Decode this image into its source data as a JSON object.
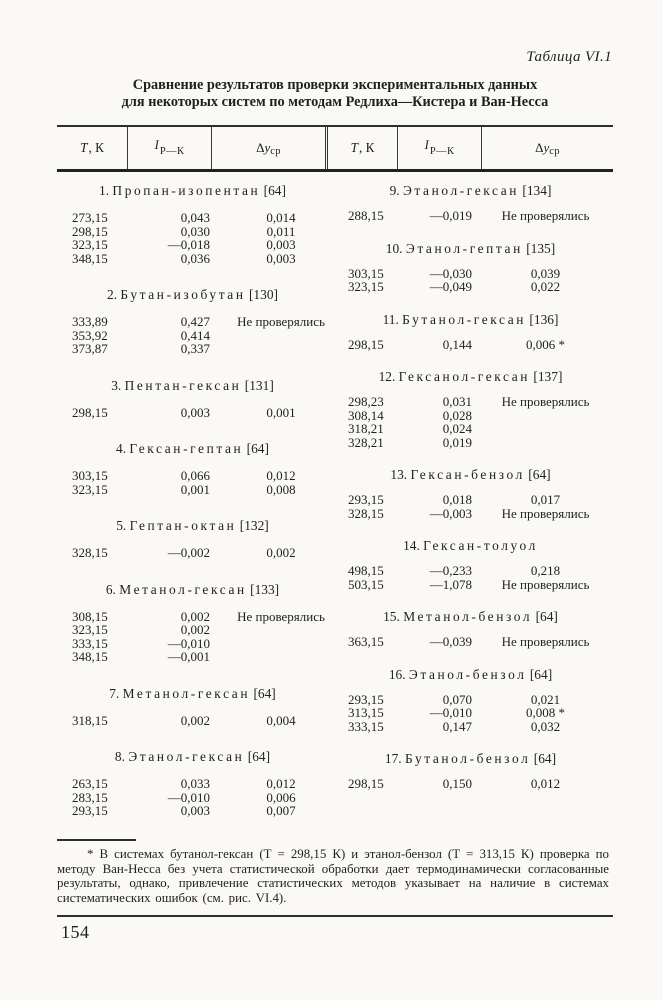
{
  "page": {
    "table_caption": "Таблица VI.1",
    "title_line1": "Сравнение результатов проверки экспериментальных данных",
    "title_line2": "для некоторых систем по методам Редлиха—Кистера и Ван-Несса",
    "footnote": "* В системах бутанол-гексан (Т = 298,15 К) и этанол-бензол (Т = 313,15 К) проверка по методу Ван-Несса без учета статистической обработки дает термодинамически согласованные результаты, однако, привлечение статистических методов указывает на наличие в системах систематических ошибок (см. рис. VI.4).",
    "page_number": "154"
  },
  "header": {
    "t_symbol": "Т",
    "t_unit": ", К",
    "i_symbol": "I",
    "i_sub": "Р—К",
    "dy_delta": "Δ",
    "dy_y": "y",
    "dy_sub": "ср"
  },
  "columns": {
    "left": [
      {
        "num": "1.",
        "name": "Пропан-изопентан",
        "ref": "[64]",
        "rows": [
          [
            "273,15",
            "0,043",
            "0,014"
          ],
          [
            "298,15",
            "0,030",
            "0,011"
          ],
          [
            "323,15",
            "—0,018",
            "0,003"
          ],
          [
            "348,15",
            "0,036",
            "0,003"
          ]
        ]
      },
      {
        "num": "2.",
        "name": "Бутан-изобутан",
        "ref": "[130]",
        "rows": [
          [
            "333,89",
            "0,427",
            "Не проверялись"
          ],
          [
            "353,92",
            "0,414",
            ""
          ],
          [
            "373,87",
            "0,337",
            ""
          ]
        ]
      },
      {
        "num": "3.",
        "name": "Пентан-гексан",
        "ref": "[131]",
        "rows": [
          [
            "298,15",
            "0,003",
            "0,001"
          ]
        ]
      },
      {
        "num": "4.",
        "name": "Гексан-гептан",
        "ref": "[64]",
        "rows": [
          [
            "303,15",
            "0,066",
            "0,012"
          ],
          [
            "323,15",
            "0,001",
            "0,008"
          ]
        ]
      },
      {
        "num": "5.",
        "name": "Гептан-октан",
        "ref": "[132]",
        "rows": [
          [
            "328,15",
            "—0,002",
            "0,002"
          ]
        ]
      },
      {
        "num": "6.",
        "name": "Метанол-гексан",
        "ref": "[133]",
        "rows": [
          [
            "308,15",
            "0,002",
            "Не проверялись"
          ],
          [
            "323,15",
            "0,002",
            ""
          ],
          [
            "333,15",
            "—0,010",
            ""
          ],
          [
            "348,15",
            "—0,001",
            ""
          ]
        ]
      },
      {
        "num": "7.",
        "name": "Метанол-гексан",
        "ref": "[64]",
        "rows": [
          [
            "318,15",
            "0,002",
            "0,004"
          ]
        ]
      },
      {
        "num": "8.",
        "name": "Этанол-гексан",
        "ref": "[64]",
        "rows": [
          [
            "263,15",
            "0,033",
            "0,012"
          ],
          [
            "283,15",
            "—0,010",
            "0,006"
          ],
          [
            "293,15",
            "0,003",
            "0,007"
          ]
        ]
      }
    ],
    "right": [
      {
        "num": "9.",
        "name": "Этанол-гексан",
        "ref": "[134]",
        "rows": [
          [
            "288,15",
            "—0,019",
            "Не проверялись"
          ]
        ]
      },
      {
        "num": "10.",
        "name": "Этанол-гептан",
        "ref": "[135]",
        "rows": [
          [
            "303,15",
            "—0,030",
            "0,039"
          ],
          [
            "323,15",
            "—0,049",
            "0,022"
          ]
        ]
      },
      {
        "num": "11.",
        "name": "Бутанол-гексан",
        "ref": "[136]",
        "rows": [
          [
            "298,15",
            "0,144",
            "0,006 *"
          ]
        ]
      },
      {
        "num": "12.",
        "name": "Гексанол-гексан",
        "ref": "[137]",
        "rows": [
          [
            "298,23",
            "0,031",
            "Не проверялись"
          ],
          [
            "308,14",
            "0,028",
            ""
          ],
          [
            "318,21",
            "0,024",
            ""
          ],
          [
            "328,21",
            "0,019",
            ""
          ]
        ]
      },
      {
        "num": "13.",
        "name": "Гексан-бензол",
        "ref": "[64]",
        "rows": [
          [
            "293,15",
            "0,018",
            "0,017"
          ],
          [
            "328,15",
            "—0,003",
            "Не проверялись"
          ]
        ]
      },
      {
        "num": "14.",
        "name": "Гексан-толуол",
        "ref": "",
        "rows": [
          [
            "498,15",
            "—0,233",
            "0,218"
          ],
          [
            "503,15",
            "—1,078",
            "Не проверялись"
          ]
        ]
      },
      {
        "num": "15.",
        "name": "Метанол-бензол",
        "ref": "[64]",
        "rows": [
          [
            "363,15",
            "—0,039",
            "Не проверялись"
          ]
        ]
      },
      {
        "num": "16.",
        "name": "Этанол-бензол",
        "ref": "[64]",
        "rows": [
          [
            "293,15",
            "0,070",
            "0,021"
          ],
          [
            "313,15",
            "—0,010",
            "0,008 *"
          ],
          [
            "333,15",
            "0,147",
            "0,032"
          ]
        ]
      },
      {
        "num": "17.",
        "name": "Бутанол-бензол",
        "ref": "[64]",
        "rows": [
          [
            "298,15",
            "0,150",
            "0,012"
          ]
        ]
      }
    ]
  },
  "colors": {
    "background": "#faf9f6",
    "text": "#1f1f1f",
    "rule": "#2e2e2e"
  }
}
